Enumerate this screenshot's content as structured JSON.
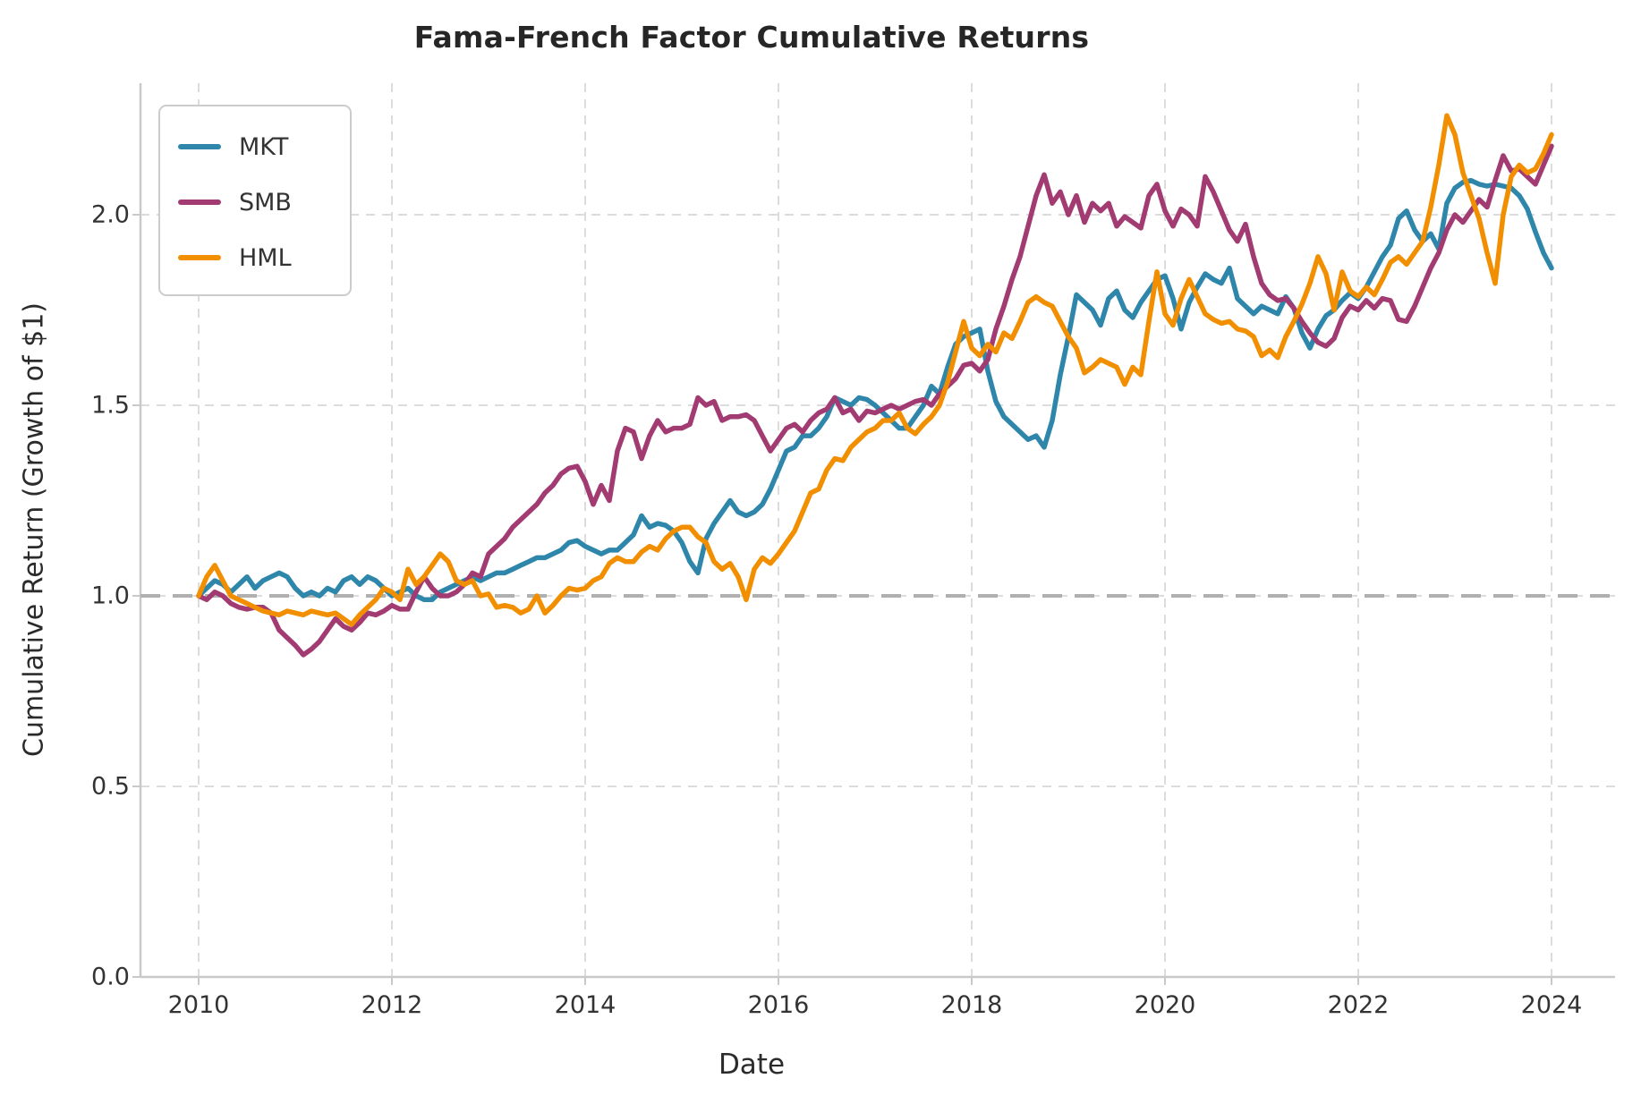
{
  "chart_data": {
    "type": "line",
    "title": "Fama-French Factor Cumulative Returns",
    "xlabel": "Date",
    "ylabel": "Cumulative Return (Growth of $1)",
    "frequency": "monthly",
    "x_start": "2010-01",
    "x_end": "2024-01",
    "x_ticks": [
      "2010",
      "2012",
      "2014",
      "2016",
      "2018",
      "2020",
      "2022",
      "2024"
    ],
    "y_ticks": [
      "0.0",
      "0.5",
      "1.0",
      "1.5",
      "2.0"
    ],
    "ylim": [
      0.0,
      2.345
    ],
    "grid": "dashed gridlines at labeled ticks",
    "legend_position": "upper left",
    "reference_line": {
      "value": 1.0,
      "style": "dashed",
      "color": "#b0b0b0"
    },
    "series": [
      {
        "name": "MKT",
        "color": "#2E86AB",
        "values": [
          1.0,
          1.02,
          1.04,
          1.03,
          1.01,
          1.03,
          1.05,
          1.02,
          1.04,
          1.05,
          1.06,
          1.05,
          1.02,
          1.0,
          1.01,
          1.0,
          1.02,
          1.01,
          1.04,
          1.05,
          1.03,
          1.05,
          1.04,
          1.02,
          1.0,
          1.01,
          1.02,
          1.0,
          0.99,
          0.99,
          1.01,
          1.02,
          1.03,
          1.04,
          1.05,
          1.04,
          1.05,
          1.06,
          1.06,
          1.07,
          1.08,
          1.09,
          1.1,
          1.1,
          1.11,
          1.12,
          1.14,
          1.145,
          1.13,
          1.12,
          1.11,
          1.12,
          1.12,
          1.14,
          1.16,
          1.21,
          1.18,
          1.19,
          1.185,
          1.17,
          1.14,
          1.09,
          1.06,
          1.15,
          1.19,
          1.22,
          1.25,
          1.22,
          1.21,
          1.22,
          1.24,
          1.28,
          1.33,
          1.38,
          1.39,
          1.42,
          1.42,
          1.44,
          1.47,
          1.52,
          1.51,
          1.5,
          1.52,
          1.515,
          1.5,
          1.48,
          1.46,
          1.44,
          1.44,
          1.47,
          1.5,
          1.55,
          1.53,
          1.6,
          1.66,
          1.68,
          1.69,
          1.7,
          1.59,
          1.51,
          1.47,
          1.45,
          1.43,
          1.41,
          1.42,
          1.39,
          1.46,
          1.58,
          1.68,
          1.79,
          1.77,
          1.75,
          1.71,
          1.78,
          1.8,
          1.75,
          1.73,
          1.77,
          1.8,
          1.83,
          1.84,
          1.78,
          1.7,
          1.77,
          1.81,
          1.845,
          1.83,
          1.82,
          1.86,
          1.78,
          1.76,
          1.74,
          1.76,
          1.75,
          1.74,
          1.785,
          1.755,
          1.69,
          1.65,
          1.7,
          1.735,
          1.75,
          1.775,
          1.795,
          1.78,
          1.81,
          1.85,
          1.89,
          1.92,
          1.99,
          2.01,
          1.96,
          1.93,
          1.95,
          1.91,
          2.03,
          2.07,
          2.085,
          2.09,
          2.08,
          2.075,
          2.08,
          2.075,
          2.07,
          2.05,
          2.015,
          1.955,
          1.9,
          1.86
        ]
      },
      {
        "name": "SMB",
        "color": "#A23B72",
        "values": [
          1.0,
          0.99,
          1.01,
          1.0,
          0.98,
          0.97,
          0.965,
          0.97,
          0.97,
          0.955,
          0.91,
          0.89,
          0.87,
          0.845,
          0.86,
          0.88,
          0.91,
          0.94,
          0.92,
          0.91,
          0.93,
          0.955,
          0.95,
          0.96,
          0.975,
          0.965,
          0.965,
          1.01,
          1.05,
          1.02,
          1.0,
          1.0,
          1.01,
          1.03,
          1.06,
          1.05,
          1.11,
          1.13,
          1.15,
          1.18,
          1.2,
          1.22,
          1.24,
          1.27,
          1.29,
          1.32,
          1.335,
          1.34,
          1.3,
          1.24,
          1.29,
          1.25,
          1.38,
          1.44,
          1.43,
          1.36,
          1.42,
          1.46,
          1.43,
          1.44,
          1.44,
          1.45,
          1.52,
          1.5,
          1.51,
          1.46,
          1.47,
          1.47,
          1.475,
          1.46,
          1.42,
          1.38,
          1.41,
          1.44,
          1.45,
          1.43,
          1.46,
          1.48,
          1.49,
          1.52,
          1.48,
          1.49,
          1.46,
          1.485,
          1.48,
          1.49,
          1.5,
          1.49,
          1.5,
          1.51,
          1.515,
          1.5,
          1.53,
          1.55,
          1.57,
          1.605,
          1.61,
          1.59,
          1.62,
          1.7,
          1.76,
          1.83,
          1.89,
          1.97,
          2.05,
          2.105,
          2.03,
          2.06,
          2.0,
          2.05,
          1.98,
          2.03,
          2.01,
          2.03,
          1.97,
          1.995,
          1.98,
          1.965,
          2.05,
          2.08,
          2.01,
          1.97,
          2.015,
          2.0,
          1.97,
          2.1,
          2.06,
          2.01,
          1.96,
          1.93,
          1.975,
          1.89,
          1.82,
          1.79,
          1.775,
          1.78,
          1.755,
          1.72,
          1.69,
          1.665,
          1.655,
          1.675,
          1.73,
          1.76,
          1.75,
          1.775,
          1.755,
          1.78,
          1.775,
          1.725,
          1.72,
          1.76,
          1.81,
          1.86,
          1.9,
          1.96,
          2.0,
          1.98,
          2.01,
          2.04,
          2.02,
          2.09,
          2.155,
          2.115,
          2.12,
          2.1,
          2.08,
          2.13,
          2.18
        ]
      },
      {
        "name": "HML",
        "color": "#F18F01",
        "values": [
          1.0,
          1.05,
          1.08,
          1.04,
          1.0,
          0.99,
          0.98,
          0.97,
          0.96,
          0.955,
          0.95,
          0.96,
          0.955,
          0.95,
          0.96,
          0.955,
          0.95,
          0.955,
          0.94,
          0.925,
          0.95,
          0.97,
          0.99,
          1.02,
          1.01,
          0.99,
          1.07,
          1.03,
          1.05,
          1.08,
          1.11,
          1.09,
          1.04,
          1.03,
          1.04,
          1.0,
          1.005,
          0.97,
          0.975,
          0.97,
          0.955,
          0.965,
          1.0,
          0.955,
          0.975,
          1.0,
          1.02,
          1.015,
          1.02,
          1.04,
          1.05,
          1.085,
          1.1,
          1.09,
          1.09,
          1.115,
          1.13,
          1.12,
          1.15,
          1.17,
          1.18,
          1.18,
          1.155,
          1.14,
          1.09,
          1.07,
          1.085,
          1.05,
          0.99,
          1.07,
          1.1,
          1.085,
          1.11,
          1.14,
          1.17,
          1.22,
          1.27,
          1.28,
          1.33,
          1.36,
          1.355,
          1.39,
          1.41,
          1.43,
          1.44,
          1.46,
          1.46,
          1.48,
          1.44,
          1.425,
          1.45,
          1.47,
          1.5,
          1.56,
          1.64,
          1.72,
          1.65,
          1.63,
          1.66,
          1.64,
          1.69,
          1.675,
          1.72,
          1.77,
          1.785,
          1.77,
          1.76,
          1.72,
          1.68,
          1.65,
          1.585,
          1.6,
          1.62,
          1.61,
          1.6,
          1.555,
          1.6,
          1.58,
          1.72,
          1.85,
          1.74,
          1.71,
          1.78,
          1.83,
          1.785,
          1.74,
          1.725,
          1.715,
          1.72,
          1.7,
          1.695,
          1.68,
          1.63,
          1.645,
          1.625,
          1.68,
          1.72,
          1.765,
          1.82,
          1.89,
          1.845,
          1.75,
          1.85,
          1.8,
          1.785,
          1.81,
          1.79,
          1.83,
          1.875,
          1.89,
          1.87,
          1.9,
          1.93,
          2.02,
          2.13,
          2.26,
          2.21,
          2.11,
          2.05,
          1.99,
          1.9,
          1.82,
          2.0,
          2.1,
          2.13,
          2.11,
          2.12,
          2.16,
          2.21
        ]
      }
    ]
  },
  "style_colors": {
    "background": "#ffffff",
    "text": "#2b2b2b",
    "tick_text": "#333333",
    "gridline": "#dcdcdc",
    "spine": "#c9c9c9",
    "reference_dash": "#b0b0b0",
    "legend_border": "#cccccc"
  }
}
